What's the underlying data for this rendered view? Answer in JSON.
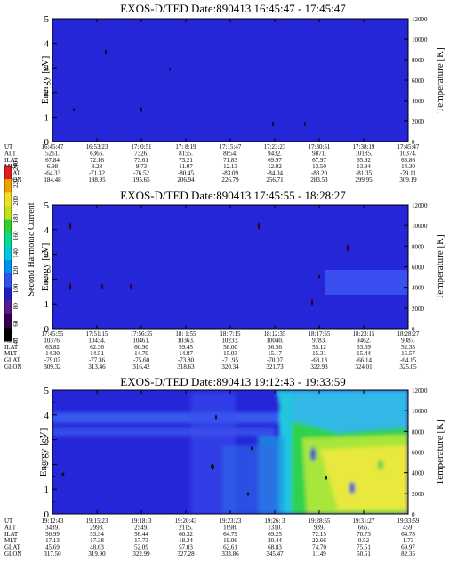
{
  "colors": {
    "background": "#ffffff",
    "panel_low": "#2626d9",
    "panel_low_alt": "#3939e6",
    "cyan": "#19d2e6",
    "green": "#2ad24a",
    "yellow_green": "#b4e632",
    "yellow": "#ecec3c",
    "black": "#000000"
  },
  "colorbar": {
    "label": "Second Harmonic Current",
    "ticks": [
      "40",
      "60",
      "80",
      "100",
      "120",
      "140",
      "160",
      "180",
      "200",
      "220",
      "240"
    ],
    "colors": [
      "#000000",
      "#3a0050",
      "#5a1a8a",
      "#2020c0",
      "#3050f0",
      "#0090f0",
      "#00c8e0",
      "#00e090",
      "#30d030",
      "#c0e020",
      "#f0e020",
      "#f0a000",
      "#e02020"
    ]
  },
  "chart_data": [
    {
      "type": "heatmap",
      "title": "EXOS-D/TED   Date:890413   16:45:47 - 17:45:47",
      "ylabel": "Energy [eV]",
      "y2label": "Temperature [K]",
      "ylim": [
        0,
        5
      ],
      "y2lim": [
        0,
        12000
      ],
      "yticks": [
        "0",
        "1",
        "2",
        "3",
        "4",
        "5"
      ],
      "y2ticks": [
        "0",
        "2000",
        "4000",
        "6000",
        "8000",
        "10000",
        "12000"
      ],
      "dominant_color": "#2626d9",
      "orbit_table": {
        "row_labels": [
          "UT",
          "ALT",
          "ILAT",
          "MLT",
          "GLAT",
          "GLON"
        ],
        "columns": [
          [
            "16:45:47",
            "5261.",
            "67.84",
            "6.98",
            "-64.33",
            "184.48"
          ],
          [
            "16:53:23",
            "6366.",
            "72.16",
            "8.28",
            "-71.32",
            "188.95"
          ],
          [
            "17: 0:51",
            "7326.",
            "73.61",
            "9.73",
            "-76.52",
            "195.65"
          ],
          [
            "17: 8:19",
            "8155.",
            "73.21",
            "11.07",
            "-80.45",
            "206.94"
          ],
          [
            "17:15:47",
            "8854.",
            "71.83",
            "12.13",
            "-83.09",
            "226.79"
          ],
          [
            "17:23:23",
            "9432.",
            "69.97",
            "12.92",
            "-84.04",
            "256.71"
          ],
          [
            "17:30:51",
            "9871.",
            "67.97",
            "13.50",
            "-83.20",
            "283.53"
          ],
          [
            "17:38:19",
            "10185.",
            "65.92",
            "13.94",
            "-81.35",
            "299.95"
          ],
          [
            "17:45:47",
            "10374.",
            "63.86",
            "14.30",
            "-79.11",
            "309.19"
          ]
        ]
      }
    },
    {
      "type": "heatmap",
      "title": "EXOS-D/TED   Date:890413   17:45:55 - 18:28:27",
      "ylabel": "Energy [eV]",
      "y2label": "Temperature [K]",
      "ylim": [
        0,
        5
      ],
      "y2lim": [
        0,
        12000
      ],
      "yticks": [
        "0",
        "1",
        "2",
        "3",
        "4",
        "5"
      ],
      "y2ticks": [
        "0",
        "2000",
        "4000",
        "6000",
        "8000",
        "10000",
        "12000"
      ],
      "dominant_color": "#2626d9",
      "orbit_table": {
        "row_labels": [
          "UT",
          "ALT",
          "ILAT",
          "MLT",
          "GLAT",
          "GLON"
        ],
        "columns": [
          [
            "17:45:55",
            "10376.",
            "63.82",
            "14.30",
            "-79.07",
            "309.32"
          ],
          [
            "17:51:15",
            "10434.",
            "62.36",
            "14.51",
            "-77.36",
            "313.46"
          ],
          [
            "17:56:35",
            "10461.",
            "60.90",
            "14.70",
            "-75.60",
            "316.42"
          ],
          [
            "18: 1:55",
            "10363.",
            "59.45",
            "14.87",
            "-73.80",
            "318.63"
          ],
          [
            "18: 7:15",
            "10233.",
            "58.00",
            "15.03",
            "-71.95",
            "320.34"
          ],
          [
            "18:12:35",
            "10040.",
            "56.56",
            "15.17",
            "-70.07",
            "321.73"
          ],
          [
            "18:17:55",
            "9783.",
            "55.12",
            "15.31",
            "-68.13",
            "322.93"
          ],
          [
            "18:23:15",
            "9462.",
            "53.69",
            "15.44",
            "-66.14",
            "324.01"
          ],
          [
            "18:28:27",
            "9087.",
            "52.33",
            "15.57",
            "-64.15",
            "325.05"
          ]
        ]
      }
    },
    {
      "type": "heatmap",
      "title": "EXOS-D/TED   Date:890413   19:12:43 - 19:33:59",
      "ylabel": "Energy [eV]",
      "y2label": "Temperature [K]",
      "ylim": [
        0,
        5
      ],
      "y2lim": [
        0,
        12000
      ],
      "yticks": [
        "0",
        "0.5",
        "1",
        "1.5",
        "2",
        "2.5",
        "3",
        "3.5",
        "4",
        "4.5",
        "5"
      ],
      "y2ticks": [
        "0",
        "2000",
        "4000",
        "6000",
        "8000",
        "10000",
        "12000"
      ],
      "dominant_color": "#2626d9",
      "orbit_table": {
        "row_labels": [
          "UT",
          "ALT",
          "ILAT",
          "MLT",
          "GLAT",
          "GLON"
        ],
        "columns": [
          [
            "19:12:43",
            "3439.",
            "50.99",
            "17.13",
            "45.69",
            "317.50"
          ],
          [
            "19:15:23",
            "2993.",
            "53.34",
            "17.38",
            "48.63",
            "319.90"
          ],
          [
            "19:18: 3",
            "2549.",
            "56.44",
            "17.73",
            "52.09",
            "322.99"
          ],
          [
            "19:20:43",
            "2115.",
            "60.32",
            "18.24",
            "57.03",
            "327.28"
          ],
          [
            "19:23:23",
            "1698.",
            "64.79",
            "19.06",
            "62.61",
            "333.86"
          ],
          [
            "19:26: 3",
            "1310.",
            "69.25",
            "20.44",
            "68.83",
            "345.47"
          ],
          [
            "19:28:55",
            "939.",
            "72.15",
            "22.66",
            "74.70",
            "11.49"
          ],
          [
            "19:31:27",
            "666.",
            "70.73",
            "0.52",
            "75.51",
            "50.51"
          ],
          [
            "19:33:59",
            "459.",
            "64.78",
            "1.73",
            "69.97",
            "82.35"
          ]
        ]
      }
    }
  ]
}
